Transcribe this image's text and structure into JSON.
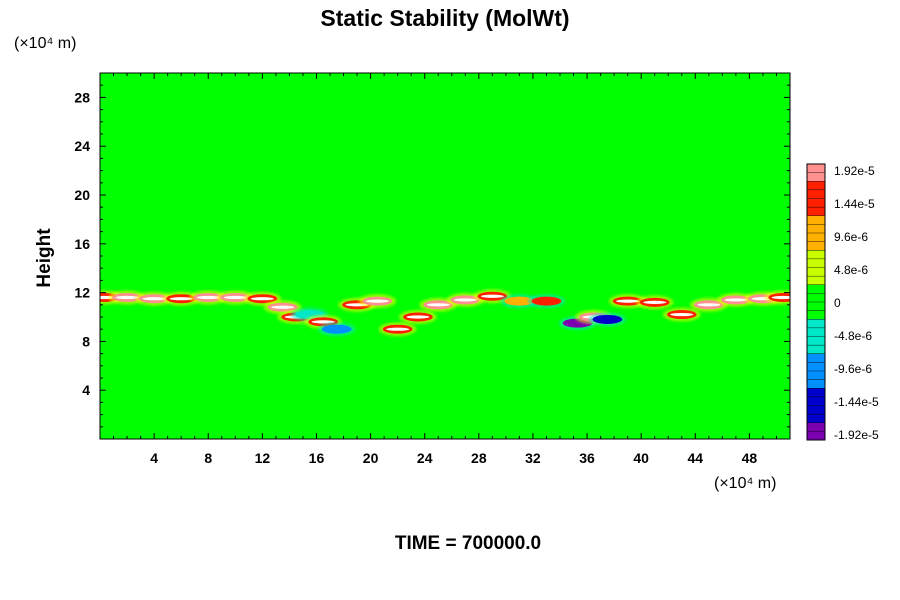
{
  "chart_data": {
    "type": "heatmap",
    "title": "Static Stability (MolWt)",
    "ylabel": "Height",
    "x_unit_label": "(×10⁴ m)",
    "y_unit_label": "(×10⁴ m)",
    "x_range": [
      0,
      51
    ],
    "y_range": [
      0,
      30
    ],
    "x_ticks": [
      "4",
      "8",
      "12",
      "16",
      "20",
      "24",
      "28",
      "32",
      "36",
      "40",
      "44",
      "48"
    ],
    "x_tick_values": [
      4,
      8,
      12,
      16,
      20,
      24,
      28,
      32,
      36,
      40,
      44,
      48
    ],
    "y_ticks": [
      "4",
      "8",
      "12",
      "16",
      "20",
      "24",
      "28"
    ],
    "y_tick_values": [
      4,
      8,
      12,
      16,
      20,
      24,
      28
    ],
    "colorbar_labels": [
      "1.92e-5",
      "1.44e-5",
      "9.6e-6",
      "4.8e-6",
      "0",
      "-4.8e-6",
      "-9.6e-6",
      "-1.44e-5",
      "-1.92e-5"
    ],
    "colorbar_values": [
      1.92e-05,
      1.44e-05,
      9.6e-06,
      4.8e-06,
      0,
      -4.8e-06,
      -9.6e-06,
      -1.44e-05,
      -1.92e-05
    ],
    "background_color": "#00ff00",
    "footer": "TIME = 700000.0",
    "features": [
      {
        "x": 0.3,
        "y": 11.6,
        "v": 1.6e-05
      },
      {
        "x": 2.0,
        "y": 11.6,
        "v": 1.8e-05
      },
      {
        "x": 4.0,
        "y": 11.5,
        "v": 1.7e-05
      },
      {
        "x": 6.0,
        "y": 11.5,
        "v": 1.6e-05
      },
      {
        "x": 8.0,
        "y": 11.6,
        "v": 1.7e-05
      },
      {
        "x": 10.0,
        "y": 11.6,
        "v": 1.8e-05
      },
      {
        "x": 12.0,
        "y": 11.5,
        "v": 1.6e-05
      },
      {
        "x": 13.5,
        "y": 10.8,
        "v": 1.9e-05
      },
      {
        "x": 14.5,
        "y": 10.0,
        "v": 1.5e-05
      },
      {
        "x": 15.5,
        "y": 10.2,
        "v": -4.8e-06
      },
      {
        "x": 16.5,
        "y": 9.6,
        "v": 1.44e-05
      },
      {
        "x": 17.5,
        "y": 9.0,
        "v": -9.6e-06
      },
      {
        "x": 19.0,
        "y": 11.0,
        "v": 1.6e-05
      },
      {
        "x": 20.5,
        "y": 11.3,
        "v": 1.7e-05
      },
      {
        "x": 22.0,
        "y": 9.0,
        "v": 1.44e-05
      },
      {
        "x": 23.5,
        "y": 10.0,
        "v": 1.6e-05
      },
      {
        "x": 25.0,
        "y": 11.0,
        "v": 1.7e-05
      },
      {
        "x": 27.0,
        "y": 11.4,
        "v": 1.8e-05
      },
      {
        "x": 29.0,
        "y": 11.7,
        "v": 1.5e-05
      },
      {
        "x": 31.0,
        "y": 11.3,
        "v": 1.2e-05
      },
      {
        "x": 33.0,
        "y": 11.3,
        "v": 1.3e-05
      },
      {
        "x": 35.3,
        "y": 9.5,
        "v": -1.92e-05
      },
      {
        "x": 36.5,
        "y": 10.0,
        "v": 1.92e-05
      },
      {
        "x": 37.5,
        "y": 9.8,
        "v": -1.44e-05
      },
      {
        "x": 39.0,
        "y": 11.3,
        "v": 1.6e-05
      },
      {
        "x": 41.0,
        "y": 11.2,
        "v": 1.5e-05
      },
      {
        "x": 43.0,
        "y": 10.2,
        "v": 1.6e-05
      },
      {
        "x": 45.0,
        "y": 11.0,
        "v": 1.8e-05
      },
      {
        "x": 47.0,
        "y": 11.4,
        "v": 1.7e-05
      },
      {
        "x": 49.0,
        "y": 11.5,
        "v": 1.8e-05
      },
      {
        "x": 50.5,
        "y": 11.6,
        "v": 1.6e-05
      }
    ]
  }
}
